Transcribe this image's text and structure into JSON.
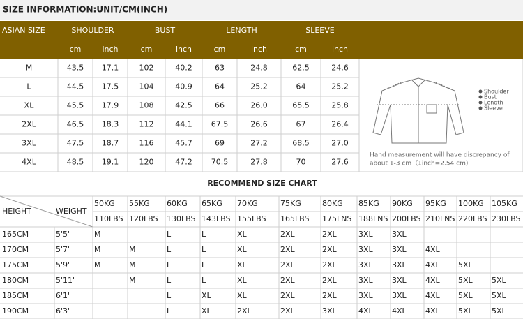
{
  "title": "SIZE INFORMATION:UNIT/CM(INCH)",
  "size_table": {
    "headers": [
      "ASIAN SIZE",
      "SHOULDER",
      "BUST",
      "LENGTH",
      "SLEEVE"
    ],
    "units": [
      "cm",
      "inch",
      "cm",
      "inch",
      "cm",
      "inch",
      "cm",
      "inch"
    ],
    "rows": [
      [
        "M",
        "43.5",
        "17.1",
        "102",
        "40.2",
        "63",
        "24.8",
        "62.5",
        "24.6"
      ],
      [
        "L",
        "44.5",
        "17.5",
        "104",
        "40.9",
        "64",
        "25.2",
        "64",
        "25.2"
      ],
      [
        "XL",
        "45.5",
        "17.9",
        "108",
        "42.5",
        "66",
        "26.0",
        "65.5",
        "25.8"
      ],
      [
        "2XL",
        "46.5",
        "18.3",
        "112",
        "44.1",
        "67.5",
        "26.6",
        "67",
        "26.4"
      ],
      [
        "3XL",
        "47.5",
        "18.7",
        "116",
        "45.7",
        "69",
        "27.2",
        "68.5",
        "27.0"
      ],
      [
        "4XL",
        "48.5",
        "19.1",
        "120",
        "47.2",
        "70.5",
        "27.8",
        "70",
        "27.6"
      ]
    ]
  },
  "diagram": {
    "legend": [
      "Shoulder",
      "Bust",
      "Length",
      "Sleeve"
    ],
    "note": [
      "Hand measurement will have discrepancy of",
      "about 1-3 cm（1inch=2.54 cm)"
    ]
  },
  "recommend": {
    "title": "RECOMMEND SIZE CHART",
    "corner": [
      "HEIGHT",
      "WEIGHT"
    ],
    "kg": [
      "50KG",
      "55KG",
      "60KG",
      "65KG",
      "70KG",
      "75KG",
      "80KG",
      "85KG",
      "90KG",
      "95KG",
      "100KG",
      "105KG"
    ],
    "lbs": [
      "110LBS",
      "120LBS",
      "130LBS",
      "143LBS",
      "155LBS",
      "165LBS",
      "175LNS",
      "188LNS",
      "200LBS",
      "210LNS",
      "220LBS",
      "230LBS"
    ],
    "rows": [
      {
        "height": "165CM",
        "feet": "5'5\"",
        "sizes": [
          "M",
          null,
          "L",
          "L",
          "XL",
          "2XL",
          "2XL",
          "3XL",
          "3XL",
          null,
          null,
          null
        ]
      },
      {
        "height": "170CM",
        "feet": "5'7\"",
        "sizes": [
          "M",
          "M",
          "L",
          "L",
          "XL",
          "2XL",
          "2XL",
          "3XL",
          "3XL",
          "4XL",
          null,
          null
        ]
      },
      {
        "height": "175CM",
        "feet": "5'9\"",
        "sizes": [
          "M",
          "M",
          "L",
          "L",
          "XL",
          "2XL",
          "2XL",
          "3XL",
          "3XL",
          "4XL",
          "5XL",
          null
        ]
      },
      {
        "height": "180CM",
        "feet": "5'11\"",
        "sizes": [
          null,
          "M",
          "L",
          "L",
          "XL",
          "2XL",
          "2XL",
          "3XL",
          "3XL",
          "4XL",
          "5XL",
          "5XL"
        ]
      },
      {
        "height": "185CM",
        "feet": "6'1\"",
        "sizes": [
          null,
          null,
          "L",
          "XL",
          "XL",
          "2XL",
          "2XL",
          "3XL",
          "3XL",
          "4XL",
          "5XL",
          "5XL"
        ]
      },
      {
        "height": "190CM",
        "feet": "6'3\"",
        "sizes": [
          null,
          null,
          "L",
          "XL",
          "2XL",
          "2XL",
          "3XL",
          "4XL",
          "4XL",
          "4XL",
          "5XL",
          "5XL"
        ]
      }
    ]
  }
}
